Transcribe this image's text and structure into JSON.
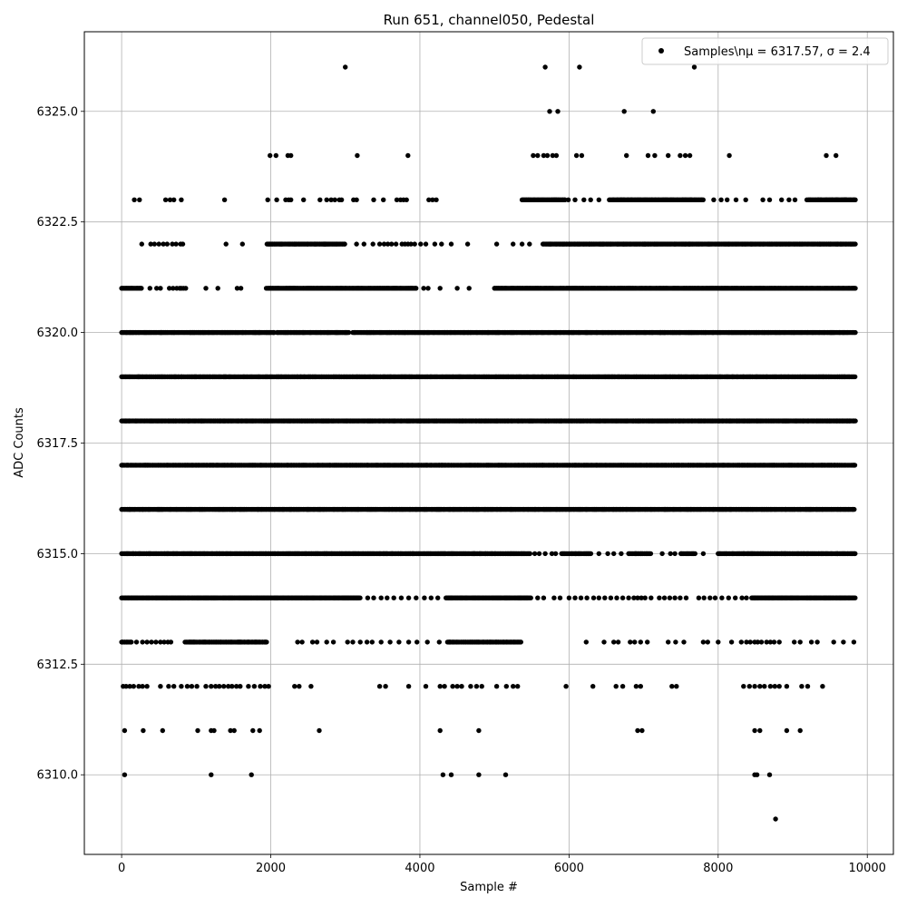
{
  "chart_data": {
    "type": "scatter",
    "title": "Run 651, channel050, Pedestal",
    "xlabel": "Sample #",
    "ylabel": "ADC Counts",
    "xlim": [
      -500,
      10350
    ],
    "ylim": [
      6308.2,
      6326.8
    ],
    "x_ticks": [
      0,
      2000,
      4000,
      6000,
      8000,
      10000
    ],
    "x_tick_labels": [
      "0",
      "2000",
      "4000",
      "6000",
      "8000",
      "10000"
    ],
    "y_ticks": [
      6310.0,
      6312.5,
      6315.0,
      6317.5,
      6320.0,
      6322.5,
      6325.0
    ],
    "y_tick_labels": [
      "6310.0",
      "6312.5",
      "6315.0",
      "6317.5",
      "6320.0",
      "6322.5",
      "6325.0"
    ],
    "grid": true,
    "legend_position": "top-right",
    "series": [
      {
        "name": "Samples\\nμ = 6317.57, σ = 2.4",
        "color": "#000000",
        "marker": "circle",
        "x_range": [
          0,
          9840
        ],
        "levels": [
          {
            "y": 6326,
            "x": [
              3000,
              5680,
              6140,
              7680
            ]
          },
          {
            "y": 6325,
            "x": [
              5740,
              5850,
              6740,
              7130
            ]
          },
          {
            "y": 6324,
            "x": [
              1990,
              2070,
              2230,
              2270,
              3160,
              3840,
              5520,
              5580,
              5660,
              5710,
              5780,
              5830,
              6100,
              6170,
              6770,
              7060,
              7150,
              7330,
              7490,
              7560,
              7620,
              8150,
              9450,
              9580
            ]
          },
          {
            "y": 6323,
            "x": [
              [
                5370,
                5950
              ],
              [
                6540,
                7800
              ],
              [
                9190,
                9840
              ]
            ],
            "x_extra": [
              170,
              240,
              590,
              650,
              700,
              800,
              1380,
              1960,
              2080,
              2200,
              2240,
              2270,
              2440,
              2660,
              2750,
              2810,
              2860,
              2920,
              2950,
              3110,
              3150,
              3380,
              3510,
              3690,
              3740,
              3780,
              3820,
              4120,
              4170,
              4220,
              5990,
              6080,
              6200,
              6290,
              6400,
              7940,
              8040,
              8120,
              8240,
              8370,
              8600,
              8690,
              8850,
              8950,
              9030,
              9350,
              9450,
              9530,
              9590,
              9700
            ]
          },
          {
            "y": 6322,
            "x": [
              [
                1950,
                3000
              ],
              [
                5650,
                9840
              ]
            ],
            "x_extra": [
              270,
              390,
              440,
              500,
              560,
              610,
              680,
              730,
              790,
              820,
              1400,
              1620,
              3150,
              3250,
              3370,
              3460,
              3520,
              3570,
              3620,
              3680,
              3760,
              3800,
              3840,
              3880,
              3930,
              4010,
              4080,
              4200,
              4290,
              4420,
              4640,
              5030,
              5250,
              5370,
              5470
            ]
          },
          {
            "y": 6321,
            "x": [
              [
                0,
                270
              ],
              [
                1940,
                3950
              ],
              [
                5000,
                9840
              ]
            ],
            "x_extra": [
              380,
              470,
              520,
              640,
              690,
              740,
              780,
              800,
              830,
              860,
              1130,
              1290,
              1550,
              1600,
              4050,
              4110,
              4270,
              4500,
              4660
            ]
          },
          {
            "y": 6320,
            "x": [
              [
                0,
                9840
              ]
            ],
            "gaps": [
              [
                2050,
                2080
              ],
              [
                3050,
                3090
              ]
            ]
          },
          {
            "y": 6319,
            "x": [
              [
                0,
                9840
              ]
            ]
          },
          {
            "y": 6318,
            "x": [
              [
                0,
                9840
              ]
            ]
          },
          {
            "y": 6317,
            "x": [
              [
                0,
                9840
              ]
            ]
          },
          {
            "y": 6316,
            "x": [
              [
                0,
                9840
              ]
            ]
          },
          {
            "y": 6315,
            "x": [
              [
                0,
                5480
              ],
              [
                5900,
                6300
              ],
              [
                6800,
                7100
              ],
              [
                7500,
                7700
              ],
              [
                8000,
                9840
              ]
            ],
            "x_extra": [
              5540,
              5600,
              5680,
              5770,
              5820,
              6400,
              6520,
              6600,
              6700,
              7250,
              7360,
              7420,
              7800
            ]
          },
          {
            "y": 6314,
            "x": [
              [
                0,
                3200
              ],
              [
                4350,
                5500
              ],
              [
                8450,
                9840
              ]
            ],
            "x_extra": [
              3300,
              3380,
              3480,
              3560,
              3650,
              3750,
              3850,
              3950,
              4060,
              4150,
              4240,
              5580,
              5660,
              5800,
              5880,
              6000,
              6080,
              6160,
              6240,
              6330,
              6400,
              6480,
              6560,
              6640,
              6720,
              6800,
              6870,
              6920,
              6970,
              7020,
              7100,
              7210,
              7280,
              7350,
              7420,
              7490,
              7570,
              7740,
              7810,
              7890,
              7960,
              8050,
              8140,
              8230,
              8320,
              8380
            ]
          },
          {
            "y": 6313,
            "x": [
              [
                0,
                130
              ],
              [
                850,
                1950
              ],
              [
                4370,
                5360
              ]
            ],
            "x_extra": [
              200,
              280,
              340,
              400,
              460,
              520,
              570,
              620,
              660,
              2360,
              2420,
              2560,
              2620,
              2750,
              2840,
              3030,
              3100,
              3200,
              3290,
              3360,
              3480,
              3600,
              3720,
              3850,
              3960,
              4100,
              4260,
              6230,
              6470,
              6600,
              6660,
              6820,
              6880,
              6960,
              7050,
              7330,
              7430,
              7540,
              7800,
              7860,
              8000,
              8180,
              8310,
              8380,
              8430,
              8490,
              8530,
              8580,
              8650,
              8700,
              8750,
              8820,
              9020,
              9100,
              9250,
              9330,
              9550,
              9680,
              9820
            ]
          },
          {
            "y": 6312,
            "x": [
              20,
              60,
              110,
              160,
              230,
              280,
              340,
              520,
              630,
              700,
              800,
              880,
              940,
              1010,
              1130,
              1200,
              1260,
              1310,
              1370,
              1430,
              1480,
              1540,
              1590,
              1700,
              1780,
              1860,
              1920,
              1970,
              2320,
              2380,
              2540,
              3460,
              3540,
              3850,
              4080,
              4270,
              4330,
              4440,
              4500,
              4560,
              4680,
              4760,
              4830,
              5030,
              5160,
              5250,
              5310,
              5960,
              6320,
              6630,
              6720,
              6900,
              6960,
              7380,
              7440,
              8340,
              8420,
              8490,
              8560,
              8620,
              8700,
              8760,
              8820,
              8920,
              9120,
              9200,
              9400
            ]
          },
          {
            "y": 6311,
            "x": [
              40,
              290,
              550,
              1020,
              1200,
              1240,
              1460,
              1510,
              1760,
              1850,
              2650,
              4270,
              4790,
              6920,
              6980,
              8490,
              8560,
              8920,
              9100
            ]
          },
          {
            "y": 6310,
            "x": [
              40,
              1200,
              1740,
              4310,
              4420,
              4790,
              5150,
              8490,
              8520,
              8690
            ]
          },
          {
            "y": 6309,
            "x": [
              8770
            ]
          }
        ]
      }
    ]
  }
}
